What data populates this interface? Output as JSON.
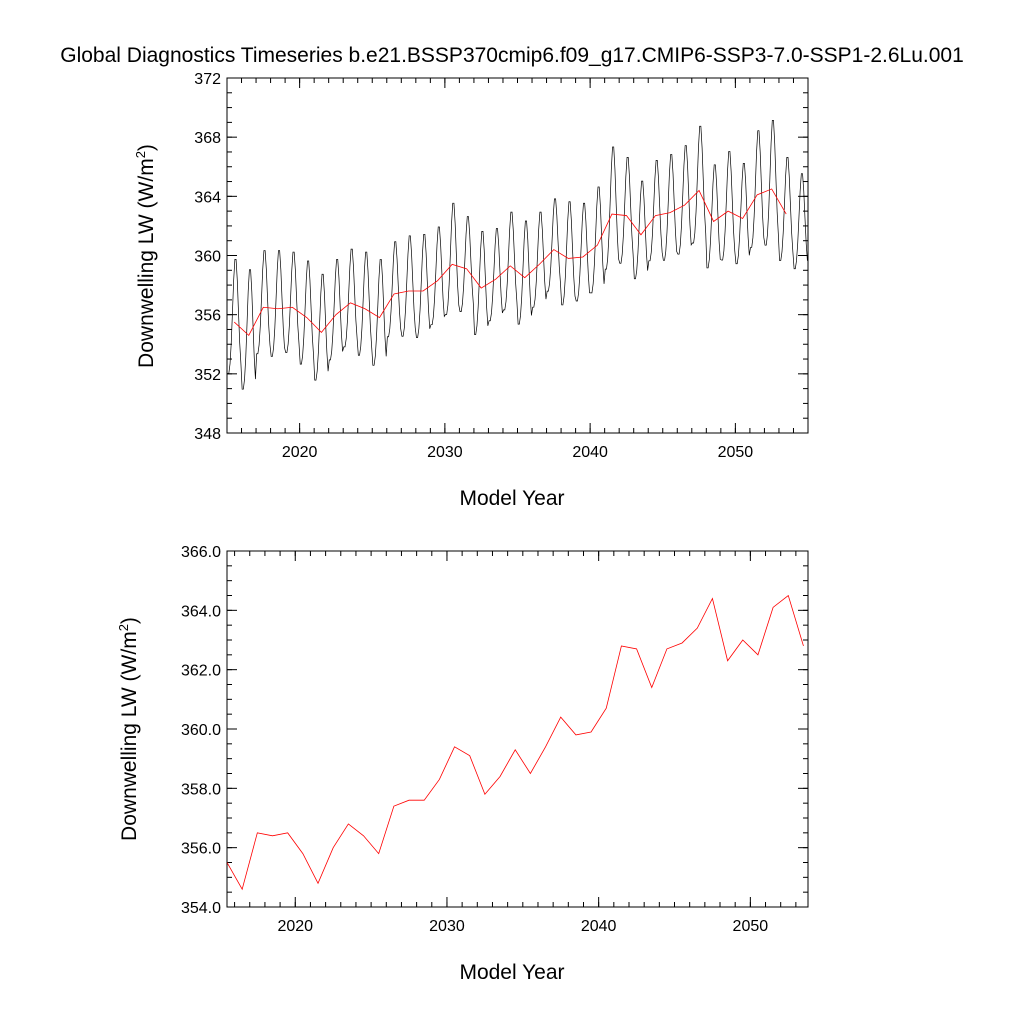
{
  "page_title": "Global Diagnostics Timeseries b.e21.BSSP370cmip6.f09_g17.CMIP6-SSP3-7.0-SSP1-2.6Lu.001",
  "colors": {
    "monthly_line": "#000000",
    "annual_line": "#ff0000",
    "axis": "#000000"
  },
  "chart_data": [
    {
      "type": "line",
      "title": "Global Diagnostics Timeseries b.e21.BSSP370cmip6.f09_g17.CMIP6-SSP3-7.0-SSP1-2.6Lu.001",
      "xlabel": "Model Year",
      "ylabel": "Downwelling LW (W/m²)",
      "ylabel_main": "Downwelling LW (W/m",
      "ylabel_sup": "2",
      "ylabel_end": ")",
      "xlim": [
        2015.0,
        2055.0
      ],
      "ylim": [
        348,
        372
      ],
      "xticks": [
        2020,
        2030,
        2040,
        2050
      ],
      "xtick_labels": [
        "2020",
        "2030",
        "2040",
        "2050"
      ],
      "yticks": [
        348,
        352,
        356,
        360,
        364,
        368,
        372
      ],
      "ytick_labels": [
        "348",
        "352",
        "356",
        "360",
        "364",
        "368",
        "372"
      ],
      "grid": false,
      "monthly_series": {
        "color": "#000000",
        "x_start": 2015.0,
        "x_step_years": 0.0833333,
        "count": 480,
        "annual_mean_values": [
          355.5,
          354.6,
          356.5,
          356.4,
          356.5,
          355.8,
          354.8,
          356.0,
          356.8,
          356.4,
          355.8,
          357.4,
          357.6,
          357.6,
          358.3,
          359.4,
          359.1,
          357.8,
          358.4,
          359.3,
          358.5,
          359.4,
          360.4,
          359.8,
          359.9,
          360.7,
          362.8,
          362.7,
          361.4,
          362.7,
          362.9,
          363.4,
          364.4,
          362.3,
          363.0,
          362.5,
          364.1,
          364.5,
          362.8,
          362.0
        ],
        "seasonal_amplitude": [
          4.2,
          4.4,
          3.8,
          3.9,
          3.7,
          3.8,
          3.9,
          3.7,
          3.6,
          3.8,
          3.9,
          3.5,
          3.7,
          3.8,
          3.6,
          4.1,
          3.5,
          3.8,
          3.4,
          3.6,
          3.8,
          3.5,
          3.4,
          3.8,
          3.6,
          3.9,
          4.5,
          3.9,
          3.6,
          3.7,
          3.9,
          4.0,
          4.3,
          3.8,
          4.0,
          3.7,
          4.3,
          4.6,
          3.8,
          3.5
        ]
      },
      "annual_series": {
        "color": "#ff0000",
        "x": [
          2015.5,
          2016.5,
          2017.5,
          2018.5,
          2019.5,
          2020.5,
          2021.5,
          2022.5,
          2023.5,
          2024.5,
          2025.5,
          2026.5,
          2027.5,
          2028.5,
          2029.5,
          2030.5,
          2031.5,
          2032.5,
          2033.5,
          2034.5,
          2035.5,
          2036.5,
          2037.5,
          2038.5,
          2039.5,
          2040.5,
          2041.5,
          2042.5,
          2043.5,
          2044.5,
          2045.5,
          2046.5,
          2047.5,
          2048.5,
          2049.5,
          2050.5,
          2051.5,
          2052.5,
          2053.5
        ],
        "values": [
          355.5,
          354.6,
          356.5,
          356.4,
          356.5,
          355.8,
          354.8,
          356.0,
          356.8,
          356.4,
          355.8,
          357.4,
          357.6,
          357.6,
          358.3,
          359.4,
          359.1,
          357.8,
          358.4,
          359.3,
          358.5,
          359.4,
          360.4,
          359.8,
          359.9,
          360.7,
          362.8,
          362.7,
          361.4,
          362.7,
          362.9,
          363.4,
          364.4,
          362.3,
          363.0,
          362.5,
          364.1,
          364.5,
          362.8
        ]
      }
    },
    {
      "type": "line",
      "xlabel": "Model Year",
      "ylabel": "Downwelling LW (W/m²)",
      "ylabel_main": "Downwelling LW (W/m",
      "ylabel_sup": "2",
      "ylabel_end": ")",
      "xlim": [
        2015.5,
        2053.8
      ],
      "ylim": [
        354.0,
        366.0
      ],
      "xticks": [
        2020,
        2030,
        2040,
        2050
      ],
      "xtick_labels": [
        "2020",
        "2030",
        "2040",
        "2050"
      ],
      "yticks": [
        354.0,
        356.0,
        358.0,
        360.0,
        362.0,
        364.0,
        366.0
      ],
      "ytick_labels": [
        "354.0",
        "356.0",
        "358.0",
        "360.0",
        "362.0",
        "364.0",
        "366.0"
      ],
      "grid": false,
      "annual_series": {
        "color": "#ff0000",
        "x": [
          2015.5,
          2016.5,
          2017.5,
          2018.5,
          2019.5,
          2020.5,
          2021.5,
          2022.5,
          2023.5,
          2024.5,
          2025.5,
          2026.5,
          2027.5,
          2028.5,
          2029.5,
          2030.5,
          2031.5,
          2032.5,
          2033.5,
          2034.5,
          2035.5,
          2036.5,
          2037.5,
          2038.5,
          2039.5,
          2040.5,
          2041.5,
          2042.5,
          2043.5,
          2044.5,
          2045.5,
          2046.5,
          2047.5,
          2048.5,
          2049.5,
          2050.5,
          2051.5,
          2052.5,
          2053.5
        ],
        "values": [
          355.5,
          354.6,
          356.5,
          356.4,
          356.5,
          355.8,
          354.8,
          356.0,
          356.8,
          356.4,
          355.8,
          357.4,
          357.6,
          357.6,
          358.3,
          359.4,
          359.1,
          357.8,
          358.4,
          359.3,
          358.5,
          359.4,
          360.4,
          359.8,
          359.9,
          360.7,
          362.8,
          362.7,
          361.4,
          362.7,
          362.9,
          363.4,
          364.4,
          362.3,
          363.0,
          362.5,
          364.1,
          364.5,
          362.8
        ]
      }
    }
  ]
}
